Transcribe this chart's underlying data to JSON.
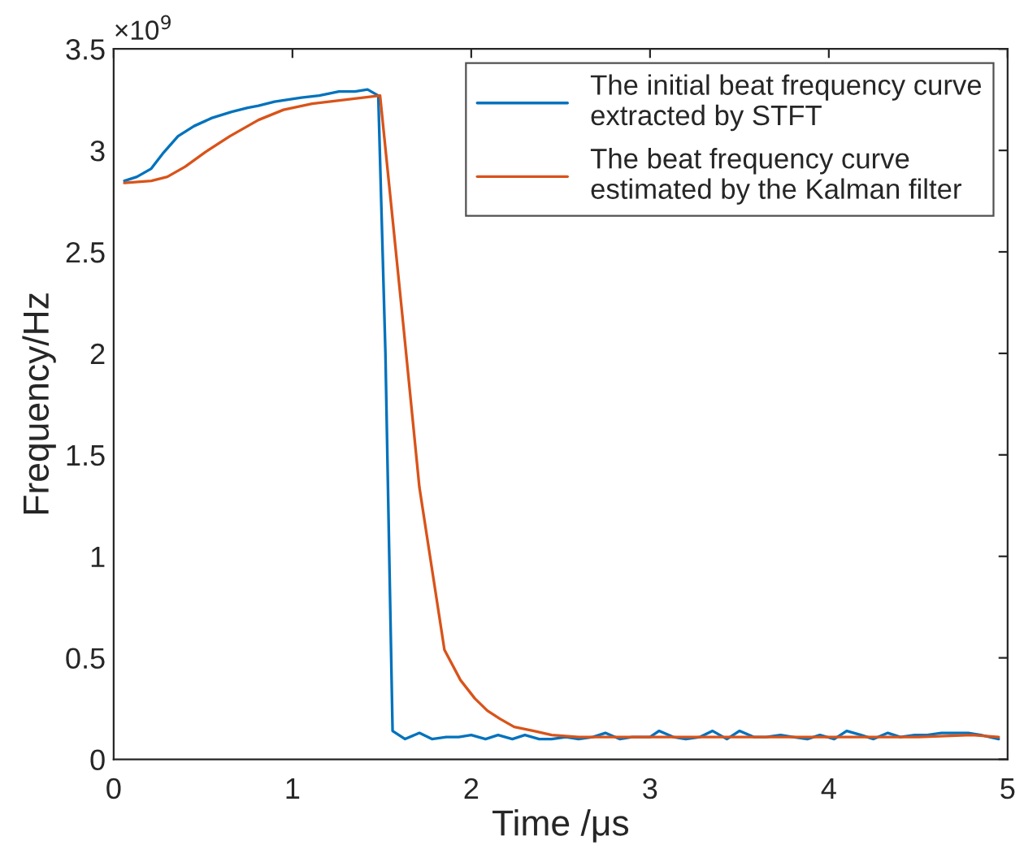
{
  "chart_data": {
    "type": "line",
    "xlabel": "Time /μs",
    "ylabel": "Frequency/Hz",
    "annotations": [
      "×10$^{9}$"
    ],
    "xlim": [
      0,
      5
    ],
    "xticks": [
      0,
      1,
      2,
      3,
      4,
      5
    ],
    "ylim": [
      0,
      3.5
    ],
    "yticks": [
      0,
      0.5,
      1,
      1.5,
      2,
      2.5,
      3,
      3.5
    ],
    "grid": false,
    "legend": "top right",
    "line_style": "solid",
    "marker": "none",
    "series": [
      {
        "name": "The initial beat frequency curve extracted by STFT",
        "color": "#0072bd",
        "x": [
          0.06,
          0.13,
          0.21,
          0.28,
          0.36,
          0.45,
          0.55,
          0.66,
          0.75,
          0.81,
          0.9,
          1.05,
          1.15,
          1.26,
          1.35,
          1.42,
          1.48,
          1.52,
          1.56,
          1.63,
          1.71,
          1.78,
          1.86,
          1.93,
          2.0,
          2.08,
          2.15,
          2.23,
          2.3,
          2.38,
          2.45,
          2.53,
          2.6,
          2.68,
          2.75,
          2.83,
          2.9,
          3.0,
          3.05,
          3.13,
          3.2,
          3.28,
          3.35,
          3.43,
          3.5,
          3.58,
          3.65,
          3.73,
          3.8,
          3.88,
          3.95,
          4.03,
          4.1,
          4.18,
          4.25,
          4.33,
          4.4,
          4.48,
          4.55,
          4.63,
          4.7,
          4.78,
          4.85,
          4.95
        ],
        "values": [
          2.85,
          2.87,
          2.91,
          2.99,
          3.07,
          3.12,
          3.16,
          3.19,
          3.21,
          3.22,
          3.24,
          3.26,
          3.27,
          3.29,
          3.29,
          3.3,
          3.27,
          2.0,
          0.14,
          0.1,
          0.13,
          0.1,
          0.11,
          0.11,
          0.12,
          0.1,
          0.12,
          0.1,
          0.12,
          0.1,
          0.1,
          0.11,
          0.1,
          0.11,
          0.13,
          0.1,
          0.11,
          0.11,
          0.14,
          0.11,
          0.1,
          0.11,
          0.14,
          0.1,
          0.14,
          0.11,
          0.11,
          0.12,
          0.11,
          0.1,
          0.12,
          0.1,
          0.14,
          0.12,
          0.1,
          0.13,
          0.11,
          0.12,
          0.12,
          0.13,
          0.13,
          0.13,
          0.12,
          0.1
        ]
      },
      {
        "name": "The beat frequency curve estimated by the Kalman filter",
        "color": "#d95319",
        "x": [
          0.06,
          0.21,
          0.3,
          0.4,
          0.51,
          0.65,
          0.81,
          0.95,
          1.11,
          1.3,
          1.49,
          1.55,
          1.62,
          1.71,
          1.78,
          1.85,
          1.94,
          2.02,
          2.09,
          2.16,
          2.24,
          2.35,
          2.45,
          2.6,
          2.8,
          3.0,
          3.3,
          3.6,
          3.9,
          4.2,
          4.5,
          4.8,
          4.95
        ],
        "values": [
          2.84,
          2.85,
          2.87,
          2.92,
          2.99,
          3.07,
          3.15,
          3.2,
          3.23,
          3.25,
          3.27,
          2.75,
          2.14,
          1.34,
          0.94,
          0.54,
          0.39,
          0.3,
          0.24,
          0.2,
          0.16,
          0.14,
          0.12,
          0.11,
          0.11,
          0.11,
          0.11,
          0.11,
          0.11,
          0.11,
          0.11,
          0.12,
          0.11
        ]
      }
    ]
  }
}
